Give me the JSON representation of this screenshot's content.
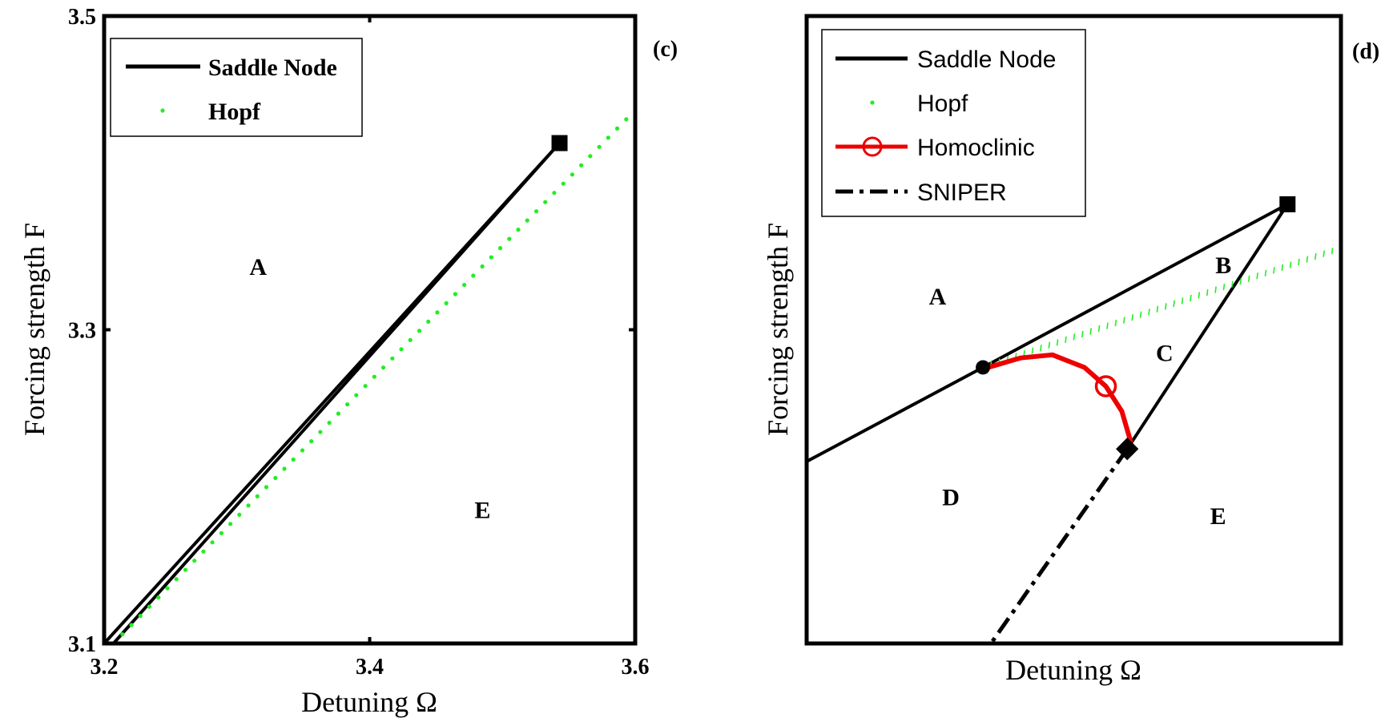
{
  "chart_data": [
    {
      "type": "line",
      "panel_label": "(c)",
      "xlabel": "Detuning Ω",
      "ylabel": "Forcing strength F",
      "xlim": [
        3.2,
        3.6
      ],
      "ylim": [
        3.1,
        3.5
      ],
      "xticks": [
        3.2,
        3.4,
        3.6
      ],
      "xtick_labels": [
        "3.2",
        "3.4",
        "3.6"
      ],
      "yticks": [
        3.1,
        3.3,
        3.5
      ],
      "ytick_labels": [
        "3.1",
        "3.3",
        "3.5"
      ],
      "legend": {
        "position": "top-left",
        "entries": [
          "Saddle Node",
          "Hopf"
        ]
      },
      "series": [
        {
          "name": "Saddle Node",
          "style": "solid",
          "color": "#000000",
          "x": [
            3.2,
            3.543,
            3.207
          ],
          "y": [
            3.1,
            3.419,
            3.1
          ]
        },
        {
          "name": "Hopf",
          "style": "dotted",
          "color": "#22ee22",
          "x": [
            3.207,
            3.6
          ],
          "y": [
            3.1,
            3.44
          ]
        }
      ],
      "markers": [
        {
          "shape": "square",
          "x": 3.543,
          "y": 3.419
        }
      ],
      "region_labels": [
        {
          "text": "A",
          "x": 3.316,
          "y": 3.335
        },
        {
          "text": "E",
          "x": 3.485,
          "y": 3.18
        }
      ]
    },
    {
      "type": "line",
      "panel_label": "(d)",
      "xlabel": "Detuning Ω",
      "ylabel": "Forcing strength F",
      "xlim": [
        0,
        1
      ],
      "ylim": [
        0,
        1
      ],
      "xticks": [],
      "yticks": [],
      "legend": {
        "position": "top-left",
        "entries": [
          "Saddle Node",
          "Hopf",
          "Homoclinic",
          "SNIPER"
        ]
      },
      "series": [
        {
          "name": "Saddle Node",
          "style": "solid",
          "color": "#000000",
          "x": [
            0,
            0.33,
            0.9,
            0.6
          ],
          "y": [
            0.29,
            0.44,
            0.7,
            0.31
          ]
        },
        {
          "name": "Hopf",
          "style": "dotted",
          "color": "#22ee22",
          "x": [
            0.33,
            1.0
          ],
          "y": [
            0.44,
            0.63
          ]
        },
        {
          "name": "Homoclinic",
          "style": "solid",
          "color": "#ee0000",
          "x": [
            0.34,
            0.4,
            0.46,
            0.52,
            0.56,
            0.59,
            0.607
          ],
          "y": [
            0.44,
            0.455,
            0.46,
            0.44,
            0.41,
            0.37,
            0.32
          ]
        },
        {
          "name": "SNIPER",
          "style": "dash-dot",
          "color": "#000000",
          "x": [
            0.6,
            0.345
          ],
          "y": [
            0.31,
            0.0
          ]
        }
      ],
      "markers": [
        {
          "shape": "square",
          "x": 0.9,
          "y": 0.7
        },
        {
          "shape": "circle-filled",
          "x": 0.33,
          "y": 0.44
        },
        {
          "shape": "diamond",
          "x": 0.6,
          "y": 0.31
        },
        {
          "shape": "circle-open",
          "color": "#ee0000",
          "x": 0.56,
          "y": 0.41
        }
      ],
      "region_labels": [
        {
          "text": "A",
          "x": 0.245,
          "y": 0.54
        },
        {
          "text": "B",
          "x": 0.78,
          "y": 0.59
        },
        {
          "text": "C",
          "x": 0.67,
          "y": 0.45
        },
        {
          "text": "D",
          "x": 0.27,
          "y": 0.22
        },
        {
          "text": "E",
          "x": 0.77,
          "y": 0.19
        }
      ]
    }
  ]
}
